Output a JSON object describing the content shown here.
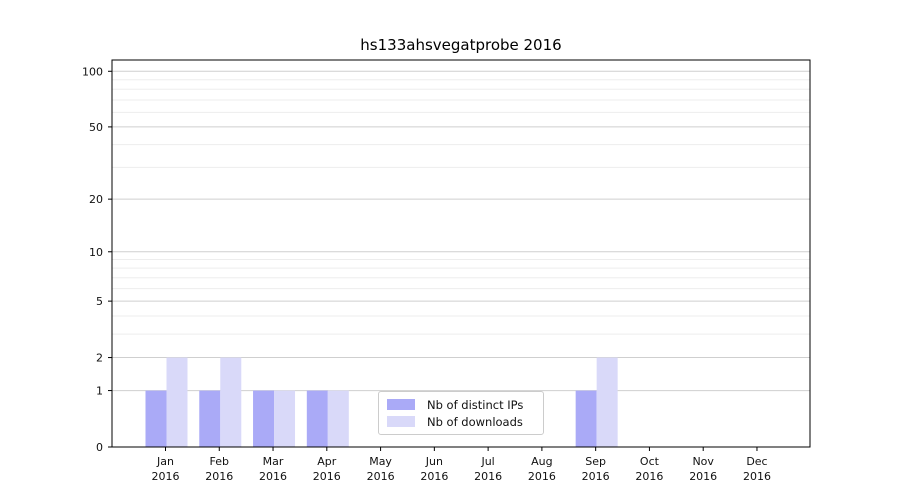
{
  "figure": {
    "background": "#ffffff"
  },
  "chart_data": {
    "type": "bar",
    "title": "hs133ahsvegatprobe 2016",
    "categories": [
      "Jan",
      "Feb",
      "Mar",
      "Apr",
      "May",
      "Jun",
      "Jul",
      "Aug",
      "Sep",
      "Oct",
      "Nov",
      "Dec"
    ],
    "category_year": "2016",
    "series": [
      {
        "name": "Nb of distinct IPs",
        "color": "#aaaaf7",
        "values": [
          1,
          1,
          1,
          1,
          0,
          0,
          0,
          0,
          1,
          0,
          0,
          0
        ]
      },
      {
        "name": "Nb of downloads",
        "color": "#d9d9f9",
        "values": [
          2,
          2,
          1,
          1,
          0,
          0,
          0,
          0,
          2,
          0,
          0,
          0
        ]
      }
    ],
    "xlabel": "",
    "ylabel": "",
    "yscale": "log(v+1)",
    "ylim": [
      0,
      115
    ],
    "yticks": [
      0,
      1,
      2,
      5,
      10,
      20,
      50,
      100
    ],
    "yticks_minor": [
      3,
      4,
      6,
      7,
      8,
      9,
      30,
      40,
      60,
      70,
      80,
      90
    ],
    "grid": "horizontal",
    "legend_position": "inside lower-center",
    "colors": {
      "major_grid": "#cfcfcf",
      "minor_grid": "#ededed",
      "spine": "#000000",
      "tick_label": "#111111"
    }
  }
}
